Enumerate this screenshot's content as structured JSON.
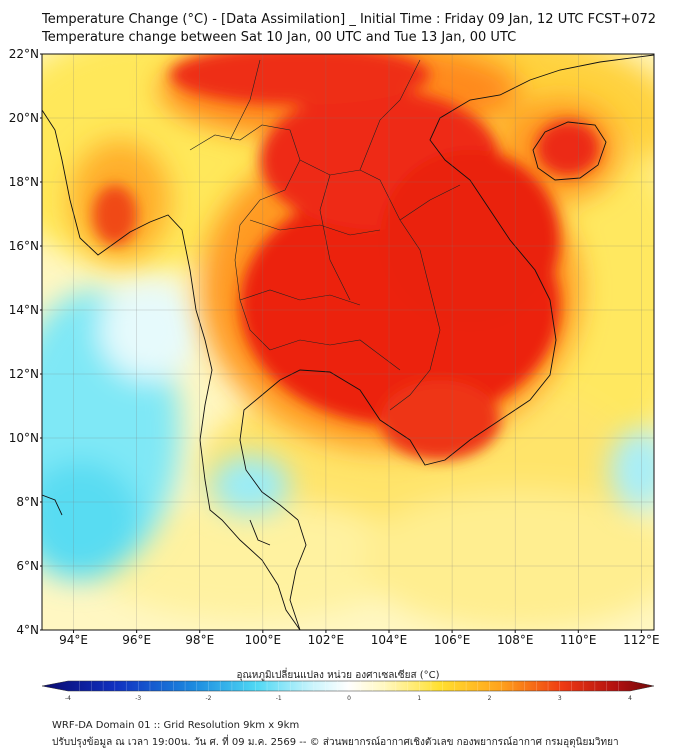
{
  "header": {
    "title": "Temperature Change (°C) - [Data Assimilation] _ Initial Time : Friday 09 Jan, 12 UTC FCST+072",
    "subtitle": "Temperature change between Sat 10 Jan, 00 UTC and Tue 13 Jan, 00 UTC"
  },
  "map": {
    "lat_labels": [
      "22°N",
      "20°N",
      "18°N",
      "16°N",
      "14°N",
      "12°N",
      "10°N",
      "8°N",
      "6°N",
      "4°N"
    ],
    "lon_labels": [
      "94°E",
      "96°E",
      "98°E",
      "100°E",
      "102°E",
      "104°E",
      "106°E",
      "108°E",
      "110°E",
      "112°E"
    ],
    "lat_range": [
      4,
      22
    ],
    "lon_range": [
      93,
      112.4
    ],
    "grid": true
  },
  "colorbar": {
    "label": "อุณหภูมิเปลี่ยนแปลง หน่วย องศาเซลเซียส (°C)",
    "ticks": [
      "-4",
      "-3",
      "-2",
      "-1",
      "0",
      "1",
      "2",
      "3",
      "4"
    ],
    "range": [
      -4,
      4
    ]
  },
  "footer": {
    "line1": "WRF-DA Domain 01 :: Grid Resolution 9km x 9km",
    "line2": "ปรับปรุงข้อมูล ณ เวลา 19:00น. วัน ศ. ที่ 09 ม.ค. 2569 -- © ส่วนพยากรณ์อากาศเชิงตัวเลข กองพยากรณ์อากาศ กรมอุตุนิยมวิทยา"
  },
  "colors": {
    "hot": "#e81a10",
    "warm": "#ff8a1f",
    "mild": "#ffe34a",
    "cool": "#60e4f4",
    "cold": "#1050c8"
  }
}
